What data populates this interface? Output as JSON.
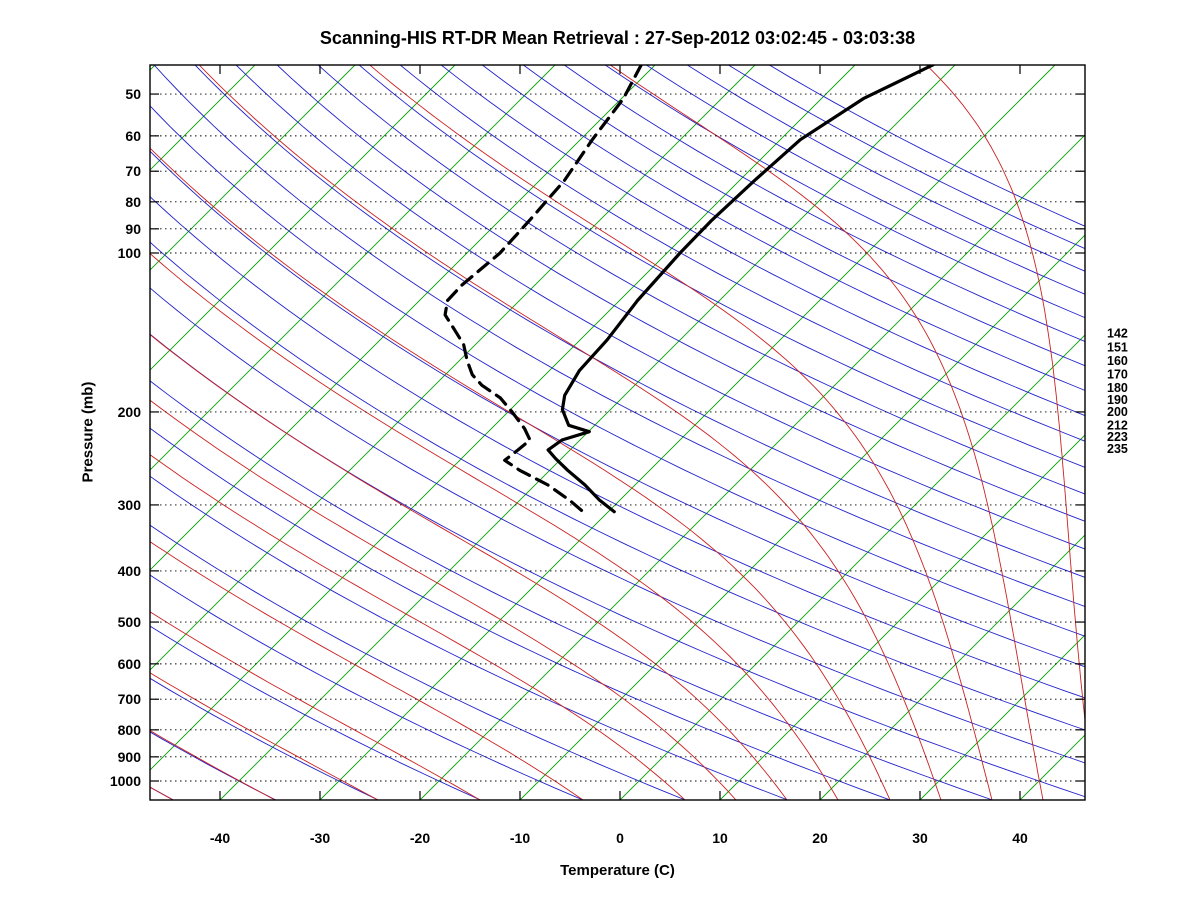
{
  "title": "Scanning-HIS RT-DR Mean Retrieval : 27-Sep-2012 03:02:45 - 03:03:38",
  "chart_data": {
    "type": "line",
    "subtype": "skew-t-log-p",
    "title": "Scanning-HIS RT-DR Mean Retrieval : 27-Sep-2012 03:02:45 - 03:03:38",
    "xlabel": "Temperature (C)",
    "ylabel": "Pressure (mb)",
    "x_ticks": [
      -40,
      -30,
      -20,
      -10,
      0,
      10,
      20,
      30,
      40
    ],
    "y_ticks": [
      50,
      60,
      70,
      80,
      90,
      100,
      200,
      300,
      400,
      500,
      600,
      700,
      800,
      900,
      1000
    ],
    "pressure_range_mb": [
      44,
      1086
    ],
    "temperature_axis_range_c": [
      -47,
      46.5
    ],
    "grid": "dotted horizontal pressure lines at labeled ticks",
    "legend_position": "none",
    "right_edge_labels": [
      142,
      151,
      160,
      170,
      180,
      190,
      200,
      212,
      223,
      235
    ],
    "background": {
      "skew": "isotherms slanted 45 degrees up-right",
      "isotherms_c": [
        -120,
        -110,
        -100,
        -90,
        -80,
        -70,
        -60,
        -50,
        -40,
        -30,
        -20,
        -10,
        0,
        10,
        20,
        30,
        40
      ],
      "dry_adiabats_theta_c": [
        -60,
        -50,
        -40,
        -30,
        -20,
        -10,
        0,
        10,
        20,
        30,
        40,
        50,
        60,
        70,
        80,
        90,
        100,
        110,
        120,
        130,
        140,
        150,
        160,
        170,
        180,
        190,
        200,
        210,
        220,
        230,
        240,
        250
      ],
      "moist_adiabats_start_c": [
        -54.9,
        -44.7,
        -34.5,
        -24.2,
        -14,
        -3.7,
        6.5,
        11.6,
        16.7,
        21.8,
        27,
        32.1,
        37.2,
        42.3,
        47.5,
        52.5,
        57.5,
        62.5,
        67.5,
        72.5,
        77.5,
        82.5
      ],
      "colors": {
        "isotherm": "#00a000",
        "dry_adiabat": "#2222cc",
        "moist_adiabat": "#cc2222",
        "pressure_line": "#000000",
        "profile": "#000000"
      }
    },
    "series": [
      {
        "name": "temperature",
        "style": "solid",
        "color": "#000000",
        "points_p_t": [
          [
            44,
            -42.2
          ],
          [
            51,
            -45.8
          ],
          [
            61,
            -48.0
          ],
          [
            73,
            -48.5
          ],
          [
            87,
            -48.8
          ],
          [
            100,
            -48.7
          ],
          [
            123,
            -48.2
          ],
          [
            146,
            -47.3
          ],
          [
            167,
            -47.0
          ],
          [
            186,
            -46.0
          ],
          [
            198,
            -44.8
          ],
          [
            212,
            -42.6
          ],
          [
            218,
            -39.9
          ],
          [
            226,
            -41.8
          ],
          [
            236,
            -42.2
          ],
          [
            245,
            -40.6
          ],
          [
            258,
            -38.2
          ],
          [
            275,
            -35.0
          ],
          [
            294,
            -32.0
          ],
          [
            309,
            -29.4
          ]
        ]
      },
      {
        "name": "dewpoint",
        "style": "dashed",
        "color": "#000000",
        "points_p_t": [
          [
            44,
            -71.4
          ],
          [
            51,
            -69.8
          ],
          [
            61,
            -68.8
          ],
          [
            73,
            -67.5
          ],
          [
            87,
            -67.0
          ],
          [
            100,
            -66.7
          ],
          [
            115,
            -67.3
          ],
          [
            123,
            -67.2
          ],
          [
            131,
            -66.0
          ],
          [
            140,
            -63.5
          ],
          [
            149,
            -61.2
          ],
          [
            160,
            -59.2
          ],
          [
            170,
            -57.3
          ],
          [
            178,
            -55.3
          ],
          [
            188,
            -52.2
          ],
          [
            200,
            -49.6
          ],
          [
            215,
            -46.7
          ],
          [
            226,
            -45.0
          ],
          [
            236,
            -45.2
          ],
          [
            247,
            -45.5
          ],
          [
            258,
            -43.0
          ],
          [
            275,
            -38.7
          ],
          [
            294,
            -35.0
          ],
          [
            311,
            -32.2
          ]
        ]
      }
    ]
  }
}
